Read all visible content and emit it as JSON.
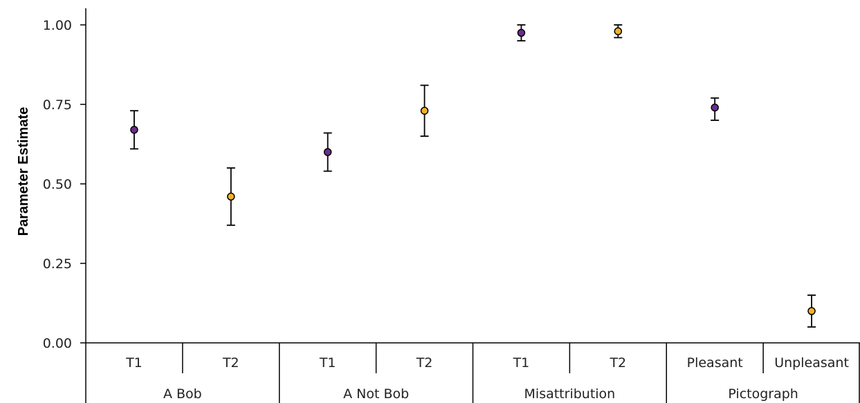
{
  "chart_data": {
    "type": "scatter",
    "ylabel": "Parameter Estimate",
    "ylim": [
      0,
      1.0
    ],
    "yticks": [
      "0.00",
      "0.25",
      "0.50",
      "0.75",
      "1.00"
    ],
    "groups": [
      "A Bob",
      "A Not Bob",
      "Misattribution",
      "Pictograph"
    ],
    "subcategories": [
      "T1",
      "T2",
      "T1",
      "T2",
      "T1",
      "T2",
      "Pleasant",
      "Unpleasant"
    ],
    "points": [
      {
        "label": "T1",
        "group": "A Bob",
        "y": 0.67,
        "lower": 0.61,
        "upper": 0.73,
        "color": "#6a2c91"
      },
      {
        "label": "T2",
        "group": "A Bob",
        "y": 0.46,
        "lower": 0.37,
        "upper": 0.55,
        "color": "#f4b223"
      },
      {
        "label": "T1",
        "group": "A Not Bob",
        "y": 0.6,
        "lower": 0.54,
        "upper": 0.66,
        "color": "#6a2c91"
      },
      {
        "label": "T2",
        "group": "A Not Bob",
        "y": 0.73,
        "lower": 0.65,
        "upper": 0.81,
        "color": "#f4b223"
      },
      {
        "label": "T1",
        "group": "Misattribution",
        "y": 0.975,
        "lower": 0.95,
        "upper": 1.0,
        "color": "#6a2c91"
      },
      {
        "label": "T2",
        "group": "Misattribution",
        "y": 0.98,
        "lower": 0.96,
        "upper": 1.0,
        "color": "#f4b223"
      },
      {
        "label": "Pleasant",
        "group": "Pictograph",
        "y": 0.74,
        "lower": 0.7,
        "upper": 0.77,
        "color": "#6a2c91"
      },
      {
        "label": "Unpleasant",
        "group": "Pictograph",
        "y": 0.1,
        "lower": 0.05,
        "upper": 0.15,
        "color": "#f4b223"
      }
    ],
    "grid": false,
    "legend": "none"
  }
}
